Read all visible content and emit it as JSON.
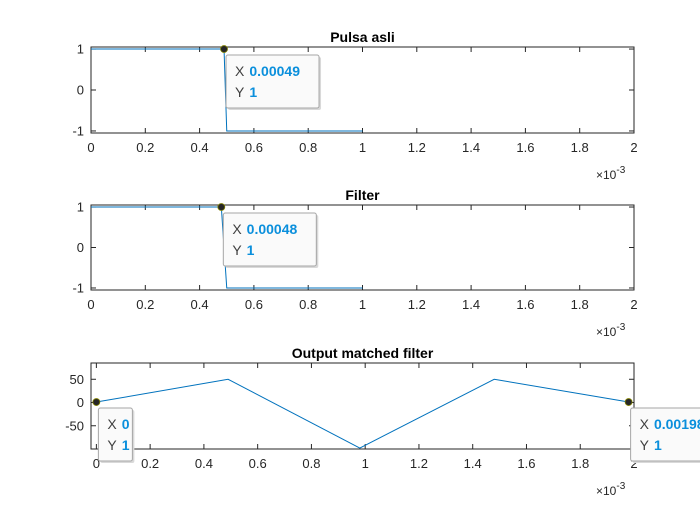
{
  "chart_data": [
    {
      "type": "line",
      "title": "Pulsa asli",
      "xlabel": "",
      "ylabel": "",
      "xlim": [
        0,
        0.002
      ],
      "ylim": [
        -1.05,
        1.05
      ],
      "x_exponent_label": "×10",
      "x_exponent": "-3",
      "xticks": [
        0,
        0.0002,
        0.0004,
        0.0006,
        0.0008,
        0.001,
        0.0012,
        0.0014,
        0.0016,
        0.0018,
        0.002
      ],
      "xtick_labels": [
        "0",
        "0.2",
        "0.4",
        "0.6",
        "0.8",
        "1",
        "1.2",
        "1.4",
        "1.6",
        "1.8",
        "2"
      ],
      "yticks": [
        -1,
        0,
        1
      ],
      "ytick_labels": [
        "-1",
        "0",
        "1"
      ],
      "grid": false,
      "line_color": "#0072bd",
      "series": [
        {
          "x": [
            0,
            0.00049,
            0.0005,
            0.001
          ],
          "y": [
            1,
            1,
            -1,
            -1
          ]
        }
      ],
      "datatip": {
        "x_label": "X",
        "x_value": "0.00049",
        "y_label": "Y",
        "y_value": "1",
        "x": 0.00049,
        "y": 1,
        "placement": "right"
      }
    },
    {
      "type": "line",
      "title": "Filter",
      "xlabel": "",
      "ylabel": "",
      "xlim": [
        0,
        0.002
      ],
      "ylim": [
        -1.05,
        1.05
      ],
      "x_exponent_label": "×10",
      "x_exponent": "-3",
      "xticks": [
        0,
        0.0002,
        0.0004,
        0.0006,
        0.0008,
        0.001,
        0.0012,
        0.0014,
        0.0016,
        0.0018,
        0.002
      ],
      "xtick_labels": [
        "0",
        "0.2",
        "0.4",
        "0.6",
        "0.8",
        "1",
        "1.2",
        "1.4",
        "1.6",
        "1.8",
        "2"
      ],
      "yticks": [
        -1,
        0,
        1
      ],
      "ytick_labels": [
        "-1",
        "0",
        "1"
      ],
      "grid": false,
      "line_color": "#0072bd",
      "series": [
        {
          "x": [
            0,
            0.00048,
            0.0005,
            0.001
          ],
          "y": [
            1,
            1,
            -1,
            -1
          ]
        }
      ],
      "datatip": {
        "x_label": "X",
        "x_value": "0.00048",
        "y_label": "Y",
        "y_value": "1",
        "x": 0.00048,
        "y": 1,
        "placement": "right"
      }
    },
    {
      "type": "line",
      "title": "Output matched filter",
      "xlabel": "",
      "ylabel": "",
      "xlim": [
        -2e-05,
        0.002
      ],
      "ylim": [
        -100,
        85
      ],
      "x_exponent_label": "×10",
      "x_exponent": "-3",
      "xticks": [
        0,
        0.0002,
        0.0004,
        0.0006,
        0.0008,
        0.001,
        0.0012,
        0.0014,
        0.0016,
        0.0018,
        0.002
      ],
      "xtick_labels": [
        "0",
        "0.2",
        "0.4",
        "0.6",
        "0.8",
        "1",
        "1.2",
        "1.4",
        "1.6",
        "1.8",
        "2"
      ],
      "yticks": [
        -50,
        0,
        50
      ],
      "ytick_labels": [
        "-50",
        "0",
        "50"
      ],
      "grid": false,
      "line_color": "#0072bd",
      "series": [
        {
          "x": [
            0,
            0.00049,
            0.00098,
            0.00148,
            0.00198
          ],
          "y": [
            1,
            50,
            -98,
            50,
            1
          ]
        }
      ],
      "datatips": [
        {
          "x_label": "X",
          "x_value": "0",
          "y_label": "Y",
          "y_value": "1",
          "x": 0,
          "y": 1,
          "placement": "below-right"
        },
        {
          "x_label": "X",
          "x_value": "0.00198",
          "y_label": "Y",
          "y_value": "1",
          "x": 0.00198,
          "y": 1,
          "placement": "below-right"
        }
      ]
    }
  ]
}
